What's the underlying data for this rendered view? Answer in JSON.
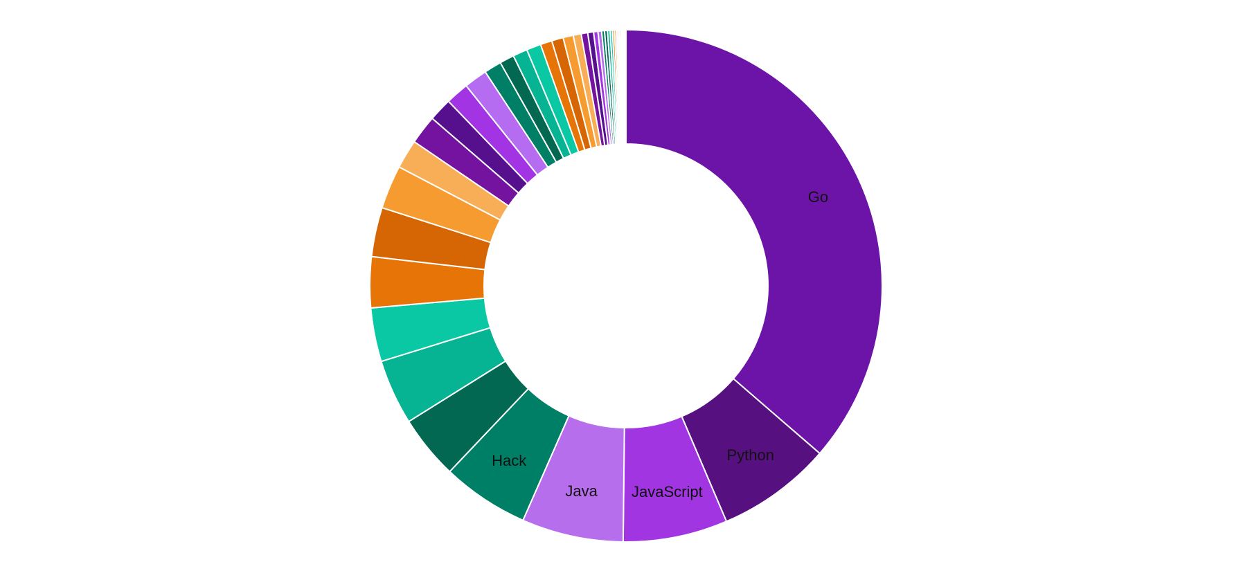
{
  "chart_data": {
    "type": "pie",
    "donut": true,
    "start": "top",
    "direction": "clockwise",
    "labels": [
      "Go",
      "Python",
      "JavaScript",
      "Java",
      "Hack",
      "",
      "",
      "",
      "",
      "",
      "",
      "",
      "",
      "",
      "",
      "",
      "",
      "",
      "",
      "",
      "",
      "",
      "",
      "",
      "",
      "",
      "",
      "",
      "",
      "",
      "",
      "",
      "",
      "",
      "",
      "",
      "",
      "",
      "",
      "",
      "",
      ""
    ],
    "values": [
      39.7,
      7.9,
      7.2,
      7.0,
      6.0,
      4.4,
      4.5,
      3.7,
      3.5,
      3.4,
      3.0,
      2.0,
      2.0,
      1.6,
      1.6,
      1.6,
      1.2,
      1.0,
      1.0,
      1.0,
      0.8,
      0.8,
      0.7,
      0.55,
      0.45,
      0.4,
      0.3,
      0.25,
      0.2,
      0.2,
      0.18,
      0.16,
      0.14,
      0.12,
      0.1,
      0.1,
      0.1,
      0.08,
      0.08,
      0.07,
      0.07,
      0.06
    ],
    "colors": [
      "#6C14A8",
      "#56107F",
      "#A235E2",
      "#B76EED",
      "#007F67",
      "#026851",
      "#06B392",
      "#09C8A3",
      "#E67407",
      "#D66603",
      "#F69B30",
      "#F8AE57",
      "#74139F",
      "#57108D",
      "#A234E3",
      "#B56CF0",
      "#007F67",
      "#026851",
      "#06B392",
      "#09C8A3",
      "#E67407",
      "#D66603",
      "#F69B30",
      "#F8AE57",
      "#74139F",
      "#57108D",
      "#A234E3",
      "#B56CF0",
      "#007F67",
      "#026851",
      "#06B392",
      "#09C8A3",
      "#E67407",
      "#D66603",
      "#F69B30",
      "#F8AE57",
      "#74139F",
      "#57108D",
      "#A234E3",
      "#B56CF0",
      "#007F67",
      "#06B392"
    ]
  }
}
